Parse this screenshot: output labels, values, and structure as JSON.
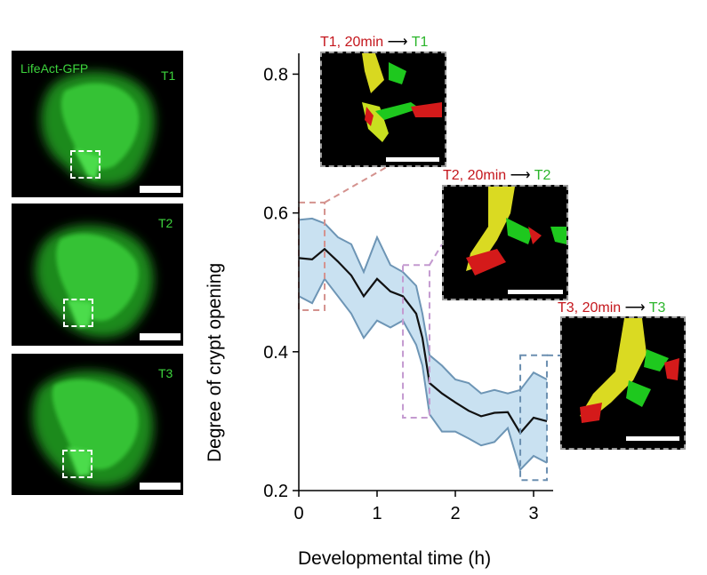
{
  "panels": [
    {
      "label": "LifeAct-GFP",
      "time": "T1"
    },
    {
      "label": "",
      "time": "T2"
    },
    {
      "label": "",
      "time": "T3"
    }
  ],
  "insets": [
    {
      "from": "T1, 20min",
      "arrow": "⟶",
      "to": "T1"
    },
    {
      "from": "T2, 20min",
      "arrow": "⟶",
      "to": "T2"
    },
    {
      "from": "T3, 20min",
      "arrow": "⟶",
      "to": "T3"
    }
  ],
  "colors": {
    "green": "#2ab52a",
    "red": "#c4161c",
    "band_fill": "#c9e1f1",
    "band_edge": "#6d95b5",
    "mean_line": "#111111",
    "box1": "#d4928e",
    "box2": "#c49ad0",
    "box3": "#6b8fb0"
  },
  "chart_data": {
    "type": "line",
    "xlabel": "Developmental time (h)",
    "ylabel": "Degree of crypt opening",
    "xlim": [
      0,
      3.25
    ],
    "ylim": [
      0.2,
      0.83
    ],
    "xticks": [
      0,
      1,
      2,
      3
    ],
    "yticks": [
      0.2,
      0.4,
      0.6,
      0.8
    ],
    "grid": false,
    "series": [
      {
        "x": [
          0,
          0.17,
          0.33,
          0.5,
          0.67,
          0.83,
          1.0,
          1.17,
          1.33,
          1.5,
          1.58,
          1.67,
          1.83,
          2.0,
          2.17,
          2.33,
          2.5,
          2.67,
          2.83,
          3.0,
          3.17
        ],
        "mean": [
          0.535,
          0.533,
          0.548,
          0.53,
          0.51,
          0.48,
          0.505,
          0.487,
          0.48,
          0.455,
          0.42,
          0.355,
          0.34,
          0.327,
          0.315,
          0.307,
          0.312,
          0.313,
          0.283,
          0.305,
          0.3
        ],
        "upper": [
          0.59,
          0.592,
          0.585,
          0.565,
          0.555,
          0.515,
          0.565,
          0.525,
          0.515,
          0.495,
          0.455,
          0.395,
          0.38,
          0.36,
          0.355,
          0.34,
          0.345,
          0.34,
          0.345,
          0.37,
          0.36
        ],
        "lower": [
          0.48,
          0.47,
          0.505,
          0.48,
          0.455,
          0.42,
          0.445,
          0.435,
          0.445,
          0.41,
          0.38,
          0.31,
          0.285,
          0.285,
          0.275,
          0.265,
          0.27,
          0.29,
          0.23,
          0.25,
          0.24
        ]
      }
    ],
    "highlight_boxes": [
      {
        "x0": 0.0,
        "x1": 0.33,
        "y0": 0.46,
        "y1": 0.615
      },
      {
        "x0": 1.33,
        "x1": 1.67,
        "y0": 0.305,
        "y1": 0.525
      },
      {
        "x0": 2.83,
        "x1": 3.17,
        "y0": 0.215,
        "y1": 0.395
      }
    ]
  }
}
